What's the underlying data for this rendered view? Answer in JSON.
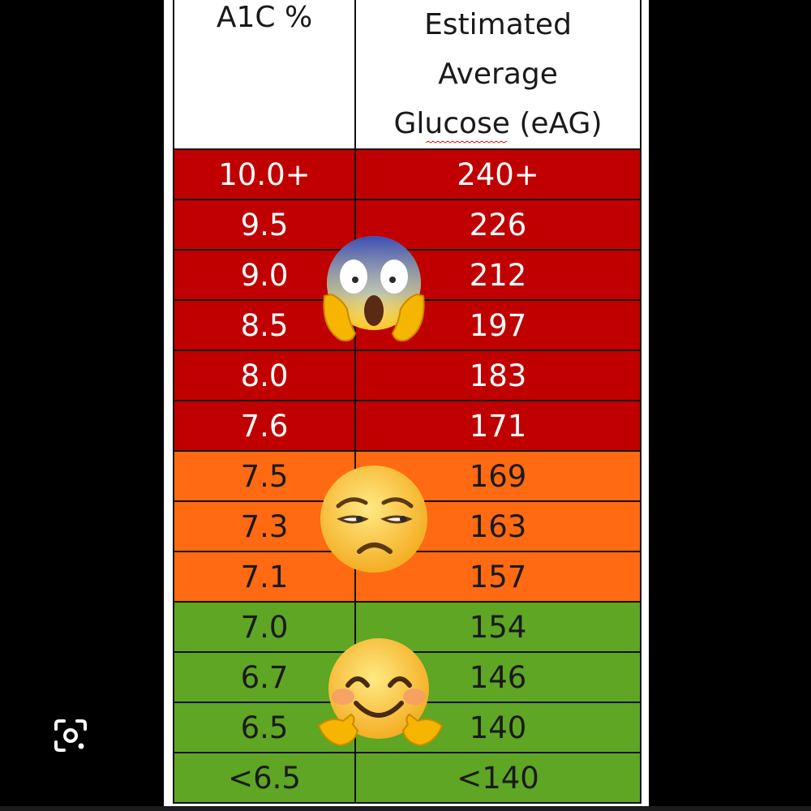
{
  "table": {
    "headers": {
      "a1c": "A1C %",
      "eag_lines": [
        "Estimated",
        "Average",
        "Glucose (eAG)"
      ]
    },
    "rows": [
      {
        "a1c": "10.0+",
        "eag": "240+",
        "level": "red"
      },
      {
        "a1c": "9.5",
        "eag": "226",
        "level": "red"
      },
      {
        "a1c": "9.0",
        "eag": "212",
        "level": "red"
      },
      {
        "a1c": "8.5",
        "eag": "197",
        "level": "red"
      },
      {
        "a1c": "8.0",
        "eag": "183",
        "level": "red"
      },
      {
        "a1c": "7.6",
        "eag": "171",
        "level": "red"
      },
      {
        "a1c": "7.5",
        "eag": "169",
        "level": "orange"
      },
      {
        "a1c": "7.3",
        "eag": "163",
        "level": "orange"
      },
      {
        "a1c": "7.1",
        "eag": "157",
        "level": "orange"
      },
      {
        "a1c": "7.0",
        "eag": "154",
        "level": "green"
      },
      {
        "a1c": "6.7",
        "eag": "146",
        "level": "green"
      },
      {
        "a1c": "6.5",
        "eag": "140",
        "level": "green"
      },
      {
        "a1c": "<6.5",
        "eag": "<140",
        "level": "green"
      }
    ],
    "colors": {
      "red": "#c00000",
      "orange": "#ff6a13",
      "green": "#5ea624"
    }
  },
  "emojis": [
    {
      "name": "face-screaming-in-fear-icon"
    },
    {
      "name": "unamused-face-icon"
    },
    {
      "name": "hugging-face-icon"
    }
  ],
  "overlay": {
    "lens_icon": "google-lens-icon"
  }
}
